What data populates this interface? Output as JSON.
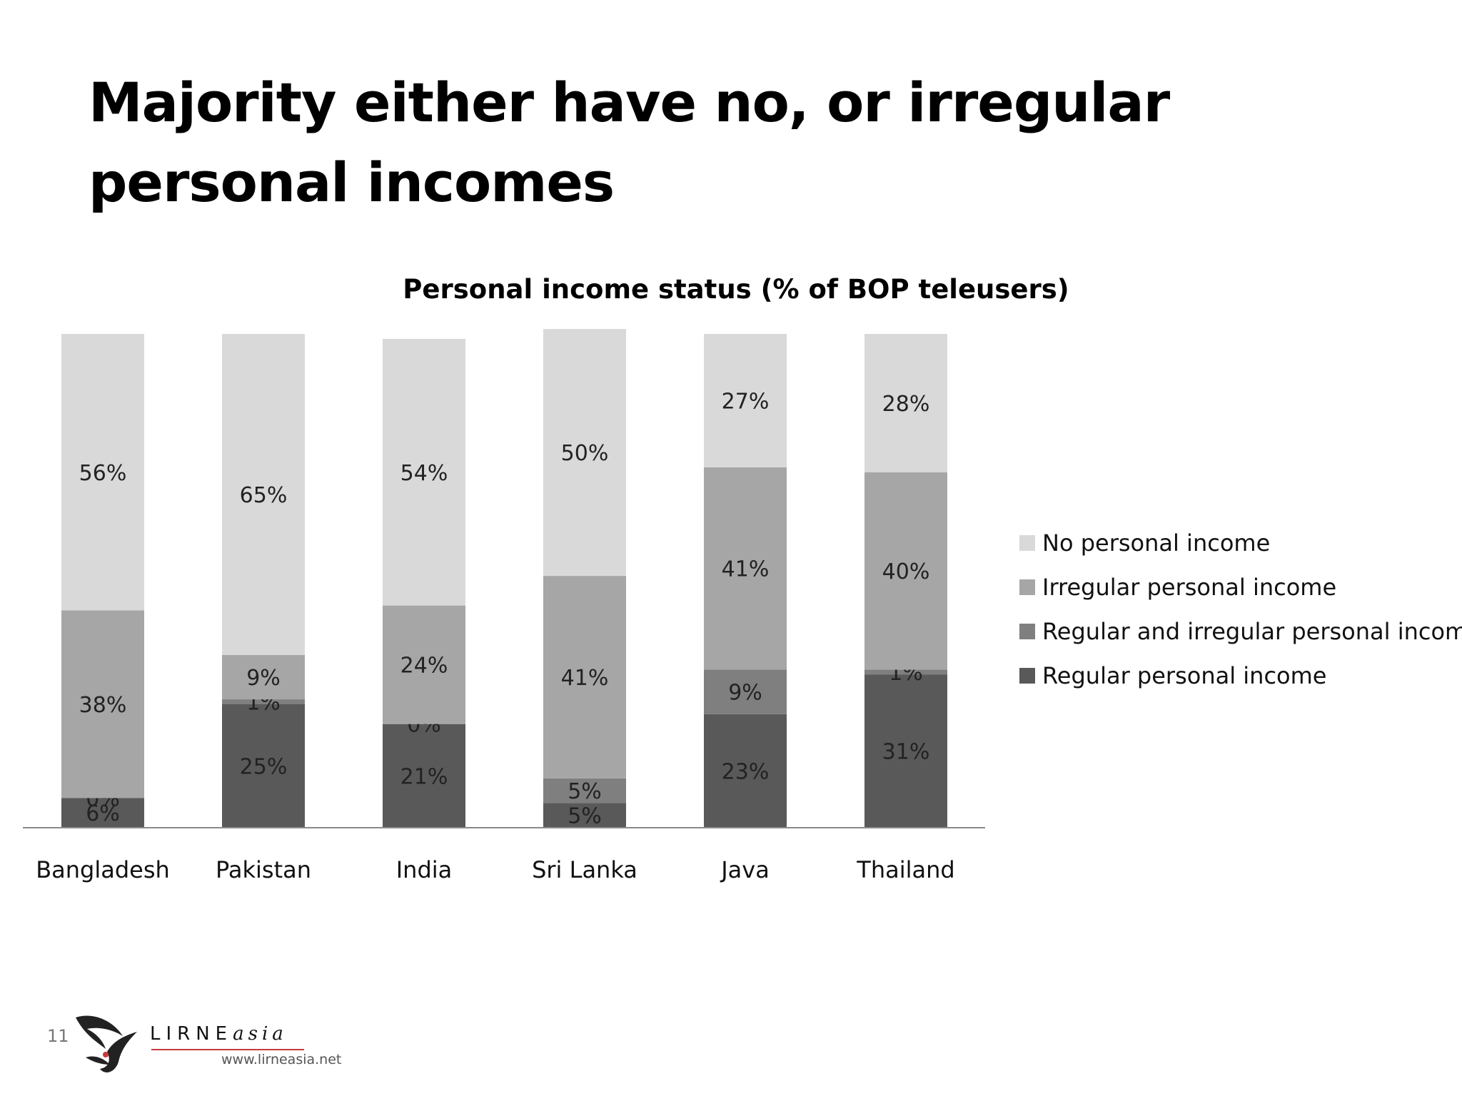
{
  "slide": {
    "title": "Majority either have no, or irregular personal incomes",
    "page_number": "11"
  },
  "logo": {
    "name_main": "LIRNE",
    "name_suffix": "asia",
    "url": "www.lirneasia.net"
  },
  "chart_data": {
    "type": "bar",
    "stacked": true,
    "title": "Personal income status (% of BOP teleusers)",
    "xlabel": "",
    "ylabel": "",
    "ylim": [
      0,
      100
    ],
    "grid": false,
    "legend_position": "right",
    "categories": [
      "Bangladesh",
      "Pakistan",
      "India",
      "Sri Lanka",
      "Java",
      "Thailand"
    ],
    "series": [
      {
        "name": "Regular personal income",
        "color": "#595959",
        "values": [
          6,
          25,
          21,
          5,
          23,
          31
        ],
        "labels": [
          "6%",
          "25%",
          "21%",
          "5%",
          "23%",
          "31%"
        ]
      },
      {
        "name": "Regular and irregular personal income",
        "color": "#7f7f7f",
        "values": [
          0,
          1,
          0,
          5,
          9,
          1
        ],
        "labels": [
          "0%",
          "1%",
          "0%",
          "5%",
          "9%",
          "1%"
        ]
      },
      {
        "name": "Irregular personal income",
        "color": "#a6a6a6",
        "values": [
          38,
          9,
          24,
          41,
          41,
          40
        ],
        "labels": [
          "38%",
          "9%",
          "24%",
          "41%",
          "41%",
          "40%"
        ]
      },
      {
        "name": "No personal income",
        "color": "#d9d9d9",
        "values": [
          56,
          65,
          54,
          50,
          27,
          28
        ],
        "labels": [
          "56%",
          "65%",
          "54%",
          "50%",
          "27%",
          "28%"
        ]
      }
    ],
    "legend_order": [
      "No personal income",
      "Irregular personal income",
      "Regular and irregular personal income",
      "Regular personal income"
    ]
  }
}
